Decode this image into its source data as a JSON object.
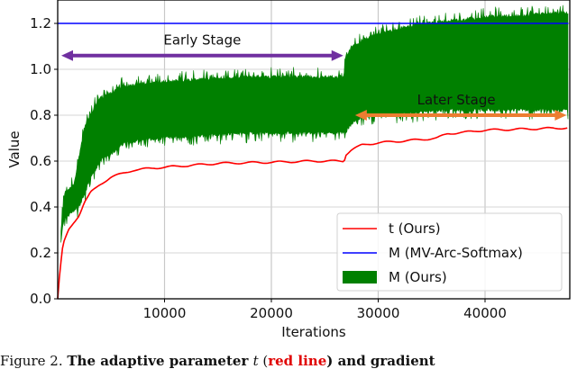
{
  "chart_data": {
    "type": "line",
    "title": "",
    "xlabel": "Iterations",
    "ylabel": "Value",
    "xlim": [
      0,
      47800
    ],
    "ylim": [
      0.0,
      1.3
    ],
    "grid": true,
    "x_ticks": [
      10000,
      20000,
      30000,
      40000
    ],
    "x_tick_labels": [
      "10000",
      "20000",
      "30000",
      "40000"
    ],
    "y_ticks": [
      0.0,
      0.2,
      0.4,
      0.6,
      0.8,
      1.0,
      1.2
    ],
    "y_tick_labels": [
      "0.0",
      "0.2",
      "0.4",
      "0.6",
      "0.8",
      "1.0",
      "1.2"
    ],
    "legend_position": "lower right",
    "series": [
      {
        "name": "t (Ours)",
        "kind": "line",
        "color": "#ff0000",
        "x": [
          0,
          200,
          500,
          1000,
          1500,
          2000,
          2500,
          3000,
          4000,
          5000,
          7000,
          9000,
          12000,
          15000,
          20000,
          24000,
          26800,
          27000,
          27500,
          28500,
          30000,
          33000,
          35500,
          36500,
          38000,
          40000,
          44000,
          47800
        ],
        "values": [
          0.0,
          0.12,
          0.24,
          0.3,
          0.33,
          0.36,
          0.42,
          0.46,
          0.5,
          0.53,
          0.56,
          0.57,
          0.58,
          0.59,
          0.595,
          0.6,
          0.6,
          0.63,
          0.65,
          0.67,
          0.68,
          0.69,
          0.7,
          0.72,
          0.725,
          0.735,
          0.74,
          0.745
        ]
      },
      {
        "name": "M (MV-Arc-Softmax)",
        "kind": "line",
        "color": "#0000ff",
        "x": [
          0,
          47800
        ],
        "values": [
          1.2,
          1.2
        ]
      },
      {
        "name": "M (Ours)",
        "kind": "band",
        "color": "#008000",
        "x": [
          300,
          600,
          1000,
          1500,
          2000,
          2500,
          3000,
          3500,
          4000,
          5000,
          6000,
          8000,
          10000,
          14000,
          18000,
          22000,
          26800,
          26900,
          27500,
          28500,
          30000,
          32000,
          34000,
          36000,
          40000,
          44000,
          47800
        ],
        "upper": [
          0.3,
          0.45,
          0.48,
          0.5,
          0.62,
          0.75,
          0.8,
          0.84,
          0.88,
          0.9,
          0.93,
          0.94,
          0.95,
          0.96,
          0.97,
          0.97,
          0.97,
          1.05,
          1.1,
          1.13,
          1.16,
          1.18,
          1.2,
          1.21,
          1.23,
          1.24,
          1.25
        ],
        "lower": [
          0.25,
          0.35,
          0.36,
          0.38,
          0.4,
          0.45,
          0.52,
          0.55,
          0.6,
          0.63,
          0.67,
          0.69,
          0.7,
          0.71,
          0.72,
          0.72,
          0.72,
          0.72,
          0.76,
          0.79,
          0.8,
          0.8,
          0.81,
          0.82,
          0.82,
          0.82,
          0.82
        ]
      }
    ],
    "annotations": [
      {
        "text": "Early Stage",
        "arrow": "double",
        "color": "#7030a0",
        "x_from": 0,
        "x_to": 26900,
        "y": 1.06
      },
      {
        "text": "Later Stage",
        "arrow": "double",
        "color": "#ed7d31",
        "x_from": 27500,
        "x_to": 47800,
        "y": 0.8
      }
    ]
  },
  "caption": {
    "prefix": "Figure 2. ",
    "bold_text": "The adaptive parameter ",
    "italic_var": "t",
    "open_paren": " (",
    "red_text": "red line",
    "suffix": ") and gradient"
  }
}
